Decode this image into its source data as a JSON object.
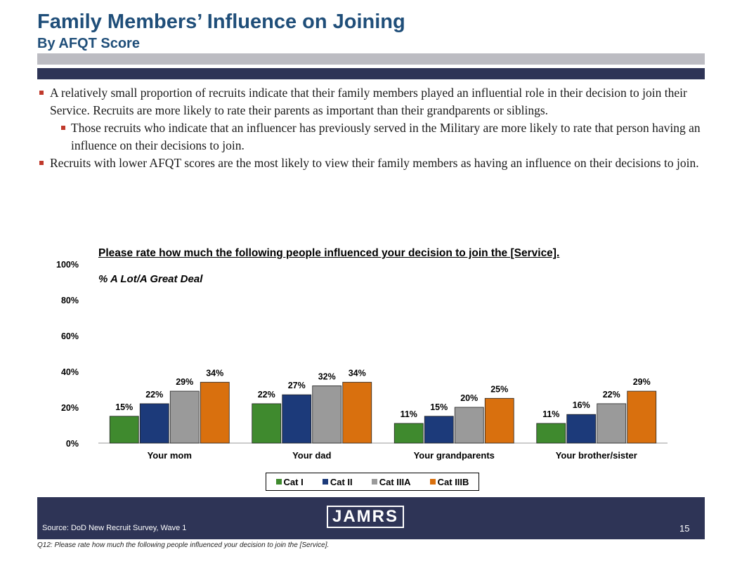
{
  "header": {
    "title": "Family Members’ Influence on Joining",
    "subtitle": "By AFQT Score"
  },
  "bullets": [
    "A relatively small proportion of recruits indicate that their family members played an influential role in their decision to join their Service.  Recruits are more likely to rate their parents as important than their grandparents or siblings.",
    "Those recruits who indicate that an influencer has previously served in the Military are more likely to rate that person having an influence on their decisions to join.",
    "Recruits with lower AFQT scores are the most likely to view their family members as having an influence on their decisions to join."
  ],
  "chart_data": {
    "type": "bar",
    "title": "Please rate how much the following people influenced your decision to join the [Service].",
    "subtitle": "% A Lot/A Great Deal",
    "categories": [
      "Your mom",
      "Your dad",
      "Your grandparents",
      "Your brother/sister"
    ],
    "series": [
      {
        "name": "Cat I",
        "color": "#3f8a2e",
        "values": [
          15,
          22,
          11,
          11
        ]
      },
      {
        "name": "Cat II",
        "color": "#1c3a7a",
        "values": [
          22,
          27,
          15,
          16
        ]
      },
      {
        "name": "Cat IIIA",
        "color": "#9a9a9a",
        "values": [
          29,
          32,
          20,
          22
        ]
      },
      {
        "name": "Cat IIIB",
        "color": "#d9700e",
        "values": [
          34,
          34,
          25,
          29
        ]
      }
    ],
    "ylim": [
      0,
      100
    ],
    "yticks": [
      "0%",
      "20%",
      "40%",
      "60%",
      "80%",
      "100%"
    ],
    "value_suffix": "%",
    "legend_position": "bottom"
  },
  "footer": {
    "source": "Source:  DoD New Recruit Survey, Wave 1",
    "page_number": "15",
    "logo": "JAMRS",
    "footnote": "Q12:  Please rate how much the following people influenced your decision to join the [Service]."
  }
}
